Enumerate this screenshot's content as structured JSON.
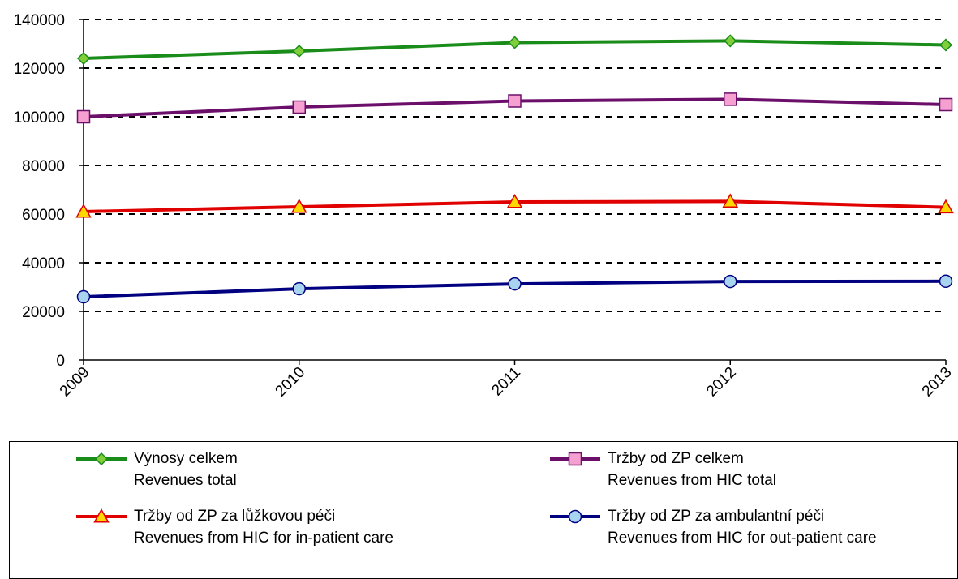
{
  "chart_data": {
    "type": "line",
    "categories": [
      "2009",
      "2010",
      "2011",
      "2012",
      "2013"
    ],
    "ylim": [
      0,
      140000
    ],
    "yticks": [
      0,
      20000,
      40000,
      60000,
      80000,
      100000,
      120000,
      140000
    ],
    "ytick_labels": [
      "0",
      "20000",
      "40000",
      "60000",
      "80000",
      "100000",
      "120000",
      "140000"
    ],
    "grid": "horizontal dashed",
    "legend_position": "bottom",
    "series": [
      {
        "name": "Výnosy celkem",
        "name_en": "Revenues total",
        "color": "#1a8c1a",
        "marker_fill": "#7fce3a",
        "marker": "diamond",
        "values": [
          124000,
          127000,
          130500,
          131200,
          129500
        ]
      },
      {
        "name": "Tržby od ZP celkem",
        "name_en": "Revenues from HIC total",
        "color": "#6b0f6b",
        "marker_fill": "#f5a0d0",
        "marker": "square",
        "values": [
          100000,
          104000,
          106500,
          107200,
          105000
        ]
      },
      {
        "name": "Tržby od ZP za lůžkovou péči",
        "name_en": "Revenues from HIC for in-patient care",
        "color": "#e00000",
        "marker_fill": "#ffd700",
        "marker": "triangle",
        "values": [
          61000,
          63000,
          65000,
          65200,
          62800
        ]
      },
      {
        "name": "Tržby od ZP za ambulantní péči",
        "name_en": "Revenues from HIC for out-patient care",
        "color": "#000080",
        "marker_fill": "#a8d4f0",
        "marker": "circle",
        "values": [
          26000,
          29300,
          31300,
          32300,
          32400
        ]
      }
    ]
  }
}
